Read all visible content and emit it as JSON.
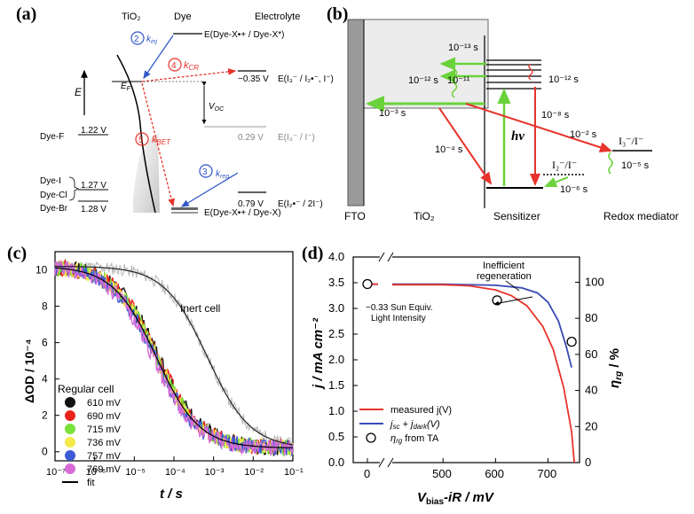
{
  "panel_a": {
    "label": "(a)",
    "col_tio2": "TiO₂",
    "col_dye": "Dye",
    "col_electrolyte": "Electrolyte",
    "energy_axis": "E",
    "fermi": "E",
    "fermi_sub": "F",
    "voc": "V",
    "voc_sub": "OC",
    "k_inj": {
      "num": "2",
      "k": "k",
      "sub": "inj"
    },
    "k_cr": {
      "num": "4",
      "k": "k",
      "sub": "CR"
    },
    "k_bet": {
      "num": "5",
      "k": "k",
      "sub": "BET"
    },
    "k_reg": {
      "num": "3",
      "k": "k",
      "sub": "reg"
    },
    "level_dye_excited": "E(Dye-X•+ / Dye-X*)",
    "level_redox1": "−0.35 V",
    "level_redox1_label": "E(I₃⁻ / I₂•⁻, I⁻)",
    "level_redox2": "0.29 V",
    "level_redox2_label": "E(I₃⁻ / I⁻)",
    "level_redox3": "0.79 V",
    "level_redox3_label": "E(I₂•⁻ / 2I⁻)",
    "level_dye_ground": "E(Dye-X•+ / Dye-X)",
    "dye_f": "Dye-F",
    "dye_f_v": "1.22 V",
    "dye_i": "Dye-I",
    "dye_cl": "Dye-Cl",
    "dye_icl_v": "1.27 V",
    "dye_br": "Dye-Br",
    "dye_br_v": "1.28 V"
  },
  "panel_b": {
    "label": "(b)",
    "fto": "FTO",
    "tio2": "TiO₂",
    "sensitizer": "Sensitizer",
    "redox_mediator": "Redox mediator",
    "hv": "hν",
    "t_13": "10⁻¹³ s",
    "t_11": "10⁻¹¹",
    "t_12a": "10⁻¹² s",
    "t_12b": "10⁻¹² s",
    "t_3": "10⁻³ s",
    "t_8": "10⁻⁸ s",
    "t_4": "10⁻⁴ s",
    "t_2": "10⁻² s",
    "t_5": "10⁻⁵ s",
    "t_6": "10⁻⁶ s",
    "i3": "I₃⁻/I⁻",
    "i2": "I₂⁻/I⁻"
  },
  "colors": {
    "red": "#e8332b",
    "green": "#6ad23a",
    "blue": "#3357c7",
    "grey": "#9a9a9a"
  },
  "chart_data": [
    {
      "type": "line",
      "panel": "(c)",
      "xlabel": "t / s",
      "ylabel": "ΔOD / 10⁻⁴",
      "xscale": "log",
      "xlim": [
        1e-07,
        0.1
      ],
      "ylim": [
        -0.5,
        11
      ],
      "x_ticks": [
        "10⁻⁷",
        "10⁻⁶",
        "10⁻⁵",
        "10⁻⁴",
        "10⁻³",
        "10⁻²",
        "10⁻¹"
      ],
      "y_ticks": [
        "0",
        "2",
        "4",
        "6",
        "8",
        "10"
      ],
      "annotation": "Inert cell",
      "legend_title": "Regular cell",
      "legend_position": "bottom-left",
      "series": [
        {
          "name": "610 mV",
          "color": "#111111",
          "half_time_s": 4.2e-05
        },
        {
          "name": "690 mV",
          "color": "#e8231c",
          "half_time_s": 4e-05
        },
        {
          "name": "715 mV",
          "color": "#7ae33a",
          "half_time_s": 3.8e-05
        },
        {
          "name": "736 mV",
          "color": "#f5e94a",
          "half_time_s": 3.6e-05
        },
        {
          "name": "757 mV",
          "color": "#3d5bd6",
          "half_time_s": 3.3e-05
        },
        {
          "name": "769 mV",
          "color": "#d76ad8",
          "half_time_s": 3e-05
        },
        {
          "name": "fit",
          "color": "#000000",
          "half_time_s": 3.6e-05
        },
        {
          "name": "Inert cell",
          "color": "#b8b8b8",
          "half_time_s": 0.0007
        }
      ]
    },
    {
      "type": "line",
      "panel": "(d)",
      "xlabel": "V",
      "xlabel_sub": "bias",
      "xlabel_rest": "-iR / mV",
      "ylabel": "j / mA cm⁻²",
      "ylabel_right": "η",
      "ylabel_right_sub": "rg",
      "ylabel_right_rest": " / %",
      "xlim": [
        0,
        760
      ],
      "ylim": [
        0,
        4.0
      ],
      "ylim_right": [
        0,
        114
      ],
      "x_ticks": [
        "0",
        "500",
        "600",
        "700"
      ],
      "y_ticks": [
        "0.0",
        "0.5",
        "1.0",
        "1.5",
        "2.0",
        "2.5",
        "3.0",
        "3.5",
        "4.0"
      ],
      "y_right_ticks": [
        "0",
        "20",
        "40",
        "60",
        "80",
        "100"
      ],
      "annotation_top": "Inefficient",
      "annotation_top2": "regeneration",
      "annotation_left": "~0.33 Sun Equiv.",
      "annotation_left2": "Light Intensity",
      "legend_position": "bottom-left",
      "series": [
        {
          "name": "measured j(V)",
          "color": "#e8332b",
          "x": [
            0,
            400,
            500,
            550,
            600,
            630,
            660,
            690,
            710,
            730,
            745,
            750
          ],
          "y": [
            3.47,
            3.47,
            3.46,
            3.44,
            3.36,
            3.25,
            3.05,
            2.65,
            2.2,
            1.45,
            0.6,
            0.0
          ]
        },
        {
          "name": "jsc + jdark(V)",
          "name_parts": {
            "a": "j",
            "a_sub": "sc",
            "b": " + j",
            "b_sub": "dark",
            "c": "(V)"
          },
          "color": "#3949b5",
          "x": [
            0,
            400,
            500,
            600,
            650,
            680,
            700,
            720,
            735,
            745
          ],
          "y": [
            3.47,
            3.47,
            3.47,
            3.45,
            3.4,
            3.3,
            3.12,
            2.75,
            2.25,
            1.85
          ]
        },
        {
          "name": "ηrg from TA",
          "name_parts": {
            "a": "η",
            "a_sub": "rg",
            "b": " from TA"
          },
          "color": "#000000",
          "marker": "open-circle",
          "x": [
            0,
            603,
            745
          ],
          "y_right": [
            99,
            90,
            67
          ]
        }
      ]
    }
  ]
}
